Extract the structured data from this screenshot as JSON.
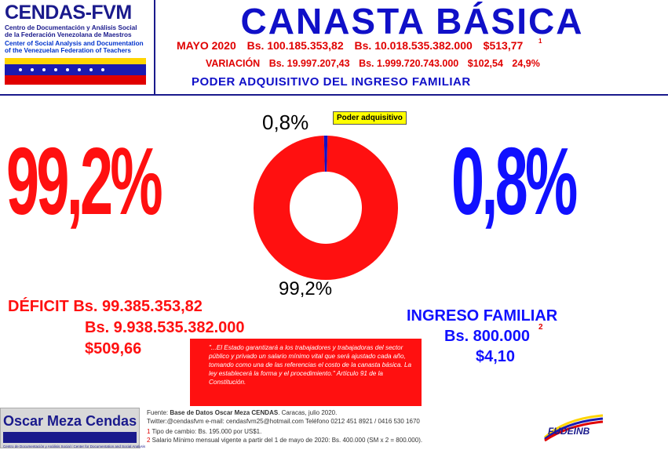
{
  "header": {
    "logo_title": "CENDAS-FVM",
    "logo_sub_es": [
      "Centro de Documentación y Análisis Social",
      "de la Federación Venezolana de Maestros"
    ],
    "logo_sub_en": [
      "Center of Social Analysis and Documentation",
      "of the Venezuelan Federation of Teachers"
    ],
    "main_title": "CANASTA BÁSICA",
    "mayo_line": [
      "MAYO 2020",
      "Bs. 100.185.353,82",
      "Bs. 10.018.535.382.000",
      "$513,77"
    ],
    "mayo_sup": "1",
    "variacion_line": [
      "VARIACIÓN",
      "Bs. 19.997.207,43",
      "Bs. 1.999.720.743.000",
      "$102,54",
      "24,9%"
    ],
    "poder_line": "PODER ADQUISITIVO DEL INGRESO FAMILIAR"
  },
  "big_left": "99,2%",
  "big_right": "0,8%",
  "legend": "Poder adquisitivo",
  "deficit": [
    "DÉFICIT Bs. 99.385.353,82",
    "Bs. 9.938.535.382.000",
    "$509,66"
  ],
  "ingreso": [
    "INGRESO FAMILIAR",
    "Bs. 800.000",
    "$4,10"
  ],
  "ingreso_sup": "2",
  "quote": "\"...El Estado garantizará a los trabajadores y trabajadoras del sector público y privado un salario mínimo vital que será ajustado cada año, tomando como una de las referencias el costo de la canasta básica. La ley establecerá la forma y el procedimiento.\" Artículo 91 de la Constitución.",
  "footer": {
    "name": "Oscar Meza Cendas",
    "tiny": "Centro de Documentación y Análisis Social / Center for Documentation and Social Analysis",
    "fuente_prefix": "Fuente: ",
    "fuente_bold": "Base de Datos Oscar Meza CENDAS",
    "fuente_suffix": ". Caracas, julio 2020.",
    "contact": "Twitter:@cendasfvm          e-mail: cendasfvm25@hotmail.com          Teléfono  0212 451 8921  /  0416 530 1670",
    "note1_num": "1",
    "note1": " Tipo de cambio: Bs. 195.000  por US$1.",
    "note2_num": "2",
    "note2": " Salario Mínimo  mensual vigente  a partir del 1 de mayo de 2020: Bs. 400.000  (SM x 2 = 800.000).",
    "right_logo": "FUDEINB"
  },
  "chart_data": {
    "type": "pie",
    "donut": true,
    "categories": [
      "Déficit",
      "Poder adquisitivo"
    ],
    "values": [
      99.2,
      0.8
    ],
    "data_labels": [
      "99,2%",
      "0,8%"
    ],
    "colors": [
      "#ff1010",
      "#1010c8"
    ],
    "legend": [
      "Poder adquisitivo"
    ],
    "legend_placement": "top-right"
  }
}
